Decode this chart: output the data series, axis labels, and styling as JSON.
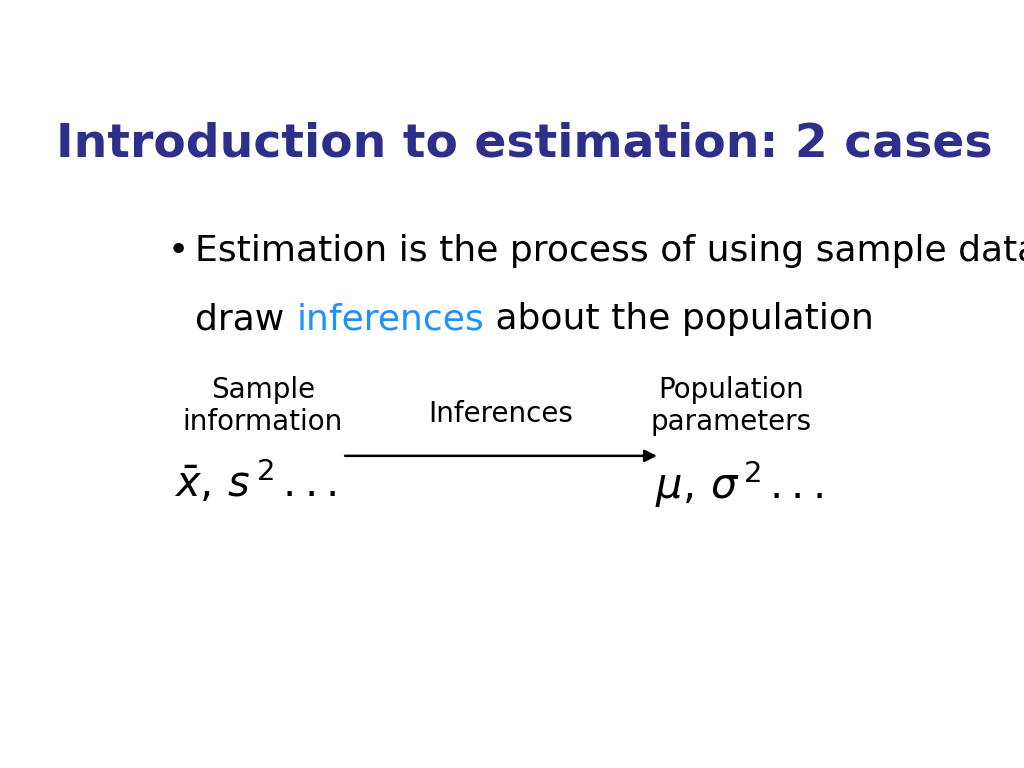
{
  "title": "Introduction to estimation: 2 cases",
  "title_color": "#2E2E8B",
  "title_fontsize": 34,
  "bullet_text_line1": "Estimation is the process of using sample data to",
  "bullet_text_line2_part1": "draw ",
  "bullet_text_line2_highlight": "inferences",
  "bullet_text_line2_part2": " about the population",
  "highlight_color": "#1E90FF",
  "bullet_color": "#000000",
  "bullet_fontsize": 26,
  "label_left": "Sample\ninformation",
  "label_middle": "Inferences",
  "label_right": "Population\nparameters",
  "label_fontsize": 20,
  "math_fontsize": 30,
  "background_color": "#FFFFFF",
  "arrow_color": "#000000"
}
